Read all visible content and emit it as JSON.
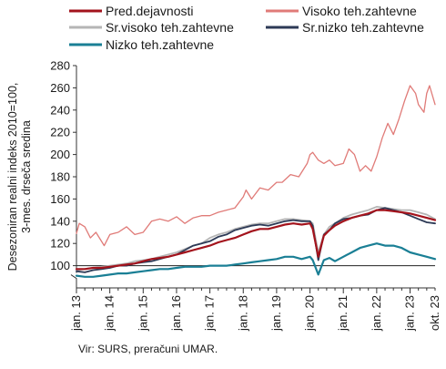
{
  "chart_data": {
    "type": "line",
    "ylabel_lines": [
      "Desezoniran realni indeks 2010=100,",
      "3-mes. drseča sredina"
    ],
    "ylim": [
      80,
      280
    ],
    "ytick_values": [
      100,
      120,
      140,
      160,
      180,
      200,
      220,
      240,
      260,
      280
    ],
    "yaxis_break": true,
    "reference_line": 100,
    "x_start": "2013-01",
    "x_end": "2023-10",
    "xtick_labels": [
      {
        "label": "jan. 13",
        "date": "2013-01"
      },
      {
        "label": "jan. 14",
        "date": "2014-01"
      },
      {
        "label": "jan. 15",
        "date": "2015-01"
      },
      {
        "label": "jan. 16",
        "date": "2016-01"
      },
      {
        "label": "jan. 17",
        "date": "2017-01"
      },
      {
        "label": "jan. 18",
        "date": "2018-01"
      },
      {
        "label": "jan. 19",
        "date": "2019-01"
      },
      {
        "label": "jan. 20",
        "date": "2020-01"
      },
      {
        "label": "jan. 21",
        "date": "2021-01"
      },
      {
        "label": "jan. 22",
        "date": "2022-01"
      },
      {
        "label": "jan. 23",
        "date": "2023-01"
      },
      {
        "label": "okt. 23",
        "date": "2023-10"
      }
    ],
    "grid": false,
    "legend": "top",
    "source": "Vir: SURS, preračuni UMAR.",
    "series": [
      {
        "name": "Visoko teh.zahtevne",
        "color": "#e07b78",
        "width": 1.3,
        "dates": [
          "2013-01",
          "2013-02",
          "2013-04",
          "2013-06",
          "2013-08",
          "2013-11",
          "2014-01",
          "2014-04",
          "2014-07",
          "2014-10",
          "2015-01",
          "2015-04",
          "2015-07",
          "2015-10",
          "2016-01",
          "2016-04",
          "2016-07",
          "2016-10",
          "2017-01",
          "2017-04",
          "2017-07",
          "2017-10",
          "2018-01",
          "2018-02",
          "2018-04",
          "2018-07",
          "2018-10",
          "2019-01",
          "2019-03",
          "2019-06",
          "2019-09",
          "2019-12",
          "2020-01",
          "2020-02",
          "2020-04",
          "2020-06",
          "2020-08",
          "2020-10",
          "2021-01",
          "2021-03",
          "2021-05",
          "2021-07",
          "2021-09",
          "2021-11",
          "2022-01",
          "2022-03",
          "2022-05",
          "2022-07",
          "2022-09",
          "2022-11",
          "2023-01",
          "2023-03",
          "2023-04",
          "2023-06",
          "2023-07",
          "2023-08",
          "2023-10"
        ],
        "values": [
          129,
          138,
          135,
          125,
          130,
          118,
          128,
          130,
          135,
          128,
          130,
          140,
          142,
          140,
          144,
          138,
          143,
          145,
          145,
          148,
          150,
          152,
          162,
          168,
          160,
          170,
          168,
          175,
          175,
          182,
          180,
          192,
          200,
          202,
          195,
          192,
          195,
          190,
          192,
          205,
          200,
          185,
          190,
          185,
          198,
          215,
          228,
          218,
          232,
          248,
          262,
          255,
          245,
          238,
          255,
          262,
          245
        ]
      },
      {
        "name": "Sr.visoko teh.zahtevne",
        "color": "#b5b5b5",
        "width": 1.8,
        "dates": [
          "2013-01",
          "2013-04",
          "2013-07",
          "2013-10",
          "2014-01",
          "2014-04",
          "2014-07",
          "2014-10",
          "2015-01",
          "2015-04",
          "2015-07",
          "2015-10",
          "2016-01",
          "2016-04",
          "2016-07",
          "2016-10",
          "2017-01",
          "2017-04",
          "2017-07",
          "2017-10",
          "2018-01",
          "2018-04",
          "2018-07",
          "2018-10",
          "2019-01",
          "2019-04",
          "2019-07",
          "2019-10",
          "2020-01",
          "2020-02",
          "2020-04",
          "2020-06",
          "2020-08",
          "2020-10",
          "2021-01",
          "2021-04",
          "2021-07",
          "2021-10",
          "2022-01",
          "2022-04",
          "2022-07",
          "2022-10",
          "2023-01",
          "2023-04",
          "2023-07",
          "2023-10"
        ],
        "values": [
          96,
          97,
          98,
          99,
          100,
          101,
          102,
          104,
          105,
          106,
          108,
          110,
          112,
          115,
          118,
          120,
          125,
          128,
          130,
          133,
          135,
          137,
          138,
          138,
          140,
          142,
          142,
          141,
          140,
          138,
          112,
          128,
          135,
          138,
          143,
          146,
          148,
          150,
          153,
          152,
          151,
          150,
          150,
          148,
          146,
          142
        ]
      },
      {
        "name": "Sr.nizko teh.zahtevne",
        "color": "#2d3a56",
        "width": 1.8,
        "dates": [
          "2013-01",
          "2013-04",
          "2013-07",
          "2013-10",
          "2014-01",
          "2014-04",
          "2014-07",
          "2014-10",
          "2015-01",
          "2015-04",
          "2015-07",
          "2015-10",
          "2016-01",
          "2016-04",
          "2016-07",
          "2016-10",
          "2017-01",
          "2017-04",
          "2017-07",
          "2017-10",
          "2018-01",
          "2018-04",
          "2018-07",
          "2018-10",
          "2019-01",
          "2019-04",
          "2019-07",
          "2019-10",
          "2020-01",
          "2020-02",
          "2020-04",
          "2020-06",
          "2020-08",
          "2020-10",
          "2021-01",
          "2021-04",
          "2021-07",
          "2021-10",
          "2022-01",
          "2022-04",
          "2022-07",
          "2022-10",
          "2023-01",
          "2023-04",
          "2023-07",
          "2023-10"
        ],
        "values": [
          95,
          94,
          96,
          97,
          98,
          100,
          100,
          102,
          103,
          104,
          106,
          108,
          110,
          114,
          118,
          120,
          122,
          126,
          128,
          132,
          134,
          136,
          137,
          136,
          138,
          140,
          141,
          140,
          140,
          136,
          105,
          128,
          132,
          138,
          142,
          143,
          145,
          146,
          150,
          152,
          150,
          148,
          145,
          142,
          139,
          138
        ]
      },
      {
        "name": "Pred.dejavnosti",
        "color": "#a3131c",
        "width": 2.2,
        "dates": [
          "2013-01",
          "2013-04",
          "2013-07",
          "2013-10",
          "2014-01",
          "2014-04",
          "2014-07",
          "2014-10",
          "2015-01",
          "2015-04",
          "2015-07",
          "2015-10",
          "2016-01",
          "2016-04",
          "2016-07",
          "2016-10",
          "2017-01",
          "2017-04",
          "2017-07",
          "2017-10",
          "2018-01",
          "2018-04",
          "2018-07",
          "2018-10",
          "2019-01",
          "2019-04",
          "2019-07",
          "2019-10",
          "2020-01",
          "2020-02",
          "2020-04",
          "2020-06",
          "2020-08",
          "2020-10",
          "2021-01",
          "2021-04",
          "2021-07",
          "2021-10",
          "2022-01",
          "2022-04",
          "2022-07",
          "2022-10",
          "2023-01",
          "2023-04",
          "2023-07",
          "2023-10"
        ],
        "values": [
          97,
          97,
          98,
          98,
          99,
          100,
          101,
          102,
          104,
          106,
          107,
          108,
          110,
          112,
          114,
          116,
          118,
          121,
          123,
          125,
          128,
          131,
          133,
          133,
          135,
          137,
          138,
          137,
          138,
          133,
          108,
          127,
          132,
          136,
          140,
          143,
          145,
          147,
          150,
          150,
          149,
          148,
          147,
          145,
          143,
          141
        ]
      },
      {
        "name": "Nizko teh.zahtevne",
        "color": "#1a7f95",
        "width": 2.2,
        "dates": [
          "2013-01",
          "2013-04",
          "2013-07",
          "2013-10",
          "2014-01",
          "2014-04",
          "2014-07",
          "2014-10",
          "2015-01",
          "2015-04",
          "2015-07",
          "2015-10",
          "2016-01",
          "2016-04",
          "2016-07",
          "2016-10",
          "2017-01",
          "2017-04",
          "2017-07",
          "2017-10",
          "2018-01",
          "2018-04",
          "2018-07",
          "2018-10",
          "2019-01",
          "2019-04",
          "2019-07",
          "2019-10",
          "2020-01",
          "2020-02",
          "2020-04",
          "2020-06",
          "2020-08",
          "2020-10",
          "2021-01",
          "2021-04",
          "2021-07",
          "2021-10",
          "2022-01",
          "2022-04",
          "2022-07",
          "2022-10",
          "2023-01",
          "2023-04",
          "2023-07",
          "2023-10"
        ],
        "values": [
          91,
          90,
          90,
          91,
          92,
          93,
          93,
          94,
          95,
          96,
          97,
          97,
          98,
          99,
          99,
          99,
          100,
          100,
          100,
          101,
          102,
          103,
          104,
          105,
          106,
          108,
          108,
          106,
          108,
          105,
          92,
          105,
          107,
          104,
          108,
          112,
          116,
          118,
          120,
          118,
          118,
          116,
          112,
          110,
          108,
          106
        ]
      }
    ],
    "legend_order": [
      "Pred.dejavnosti",
      "Visoko teh.zahtevne",
      "Sr.visoko teh.zahtevne",
      "Sr.nizko teh.zahtevne",
      "Nizko teh.zahtevne"
    ]
  }
}
